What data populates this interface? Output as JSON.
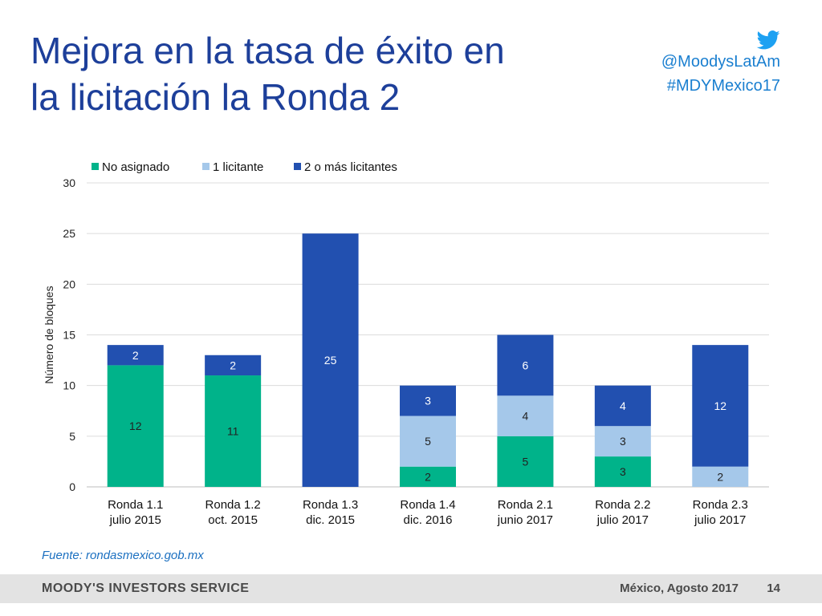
{
  "slide": {
    "title_line1": "Mejora en la tasa de éxito en",
    "title_line2": "la licitación la Ronda 2",
    "twitter_handle": "@MoodysLatAm",
    "hashtag": "#MDYMexico17",
    "source": "Fuente: rondasmexico.gob.mx",
    "footer_brand": "MOODY'S INVESTORS SERVICE",
    "footer_place": "México, Agosto 2017",
    "page_number": "14"
  },
  "chart_data": {
    "type": "bar",
    "stacked": true,
    "title": "",
    "xlabel": "",
    "ylabel": "Número de bloques",
    "ylim": [
      0,
      30
    ],
    "yticks": [
      0,
      5,
      10,
      15,
      20,
      25,
      30
    ],
    "grid": true,
    "legend_position": "top",
    "categories": [
      [
        "Ronda 1.1",
        "julio 2015"
      ],
      [
        "Ronda 1.2",
        "oct. 2015"
      ],
      [
        "Ronda 1.3",
        "dic. 2015"
      ],
      [
        "Ronda 1.4",
        "dic. 2016"
      ],
      [
        "Ronda 2.1",
        "junio 2017"
      ],
      [
        "Ronda 2.2",
        "julio 2017"
      ],
      [
        "Ronda 2.3",
        "julio 2017"
      ]
    ],
    "series": [
      {
        "name": "No asignado",
        "color": "#00b38a",
        "values": [
          12,
          11,
          0,
          2,
          5,
          3,
          0
        ]
      },
      {
        "name": "1 licitante",
        "color": "#a5c8ea",
        "values": [
          0,
          0,
          0,
          5,
          4,
          3,
          2
        ]
      },
      {
        "name": "2 o más licitantes",
        "color": "#2250b0",
        "values": [
          2,
          2,
          25,
          3,
          6,
          4,
          12
        ]
      }
    ]
  }
}
